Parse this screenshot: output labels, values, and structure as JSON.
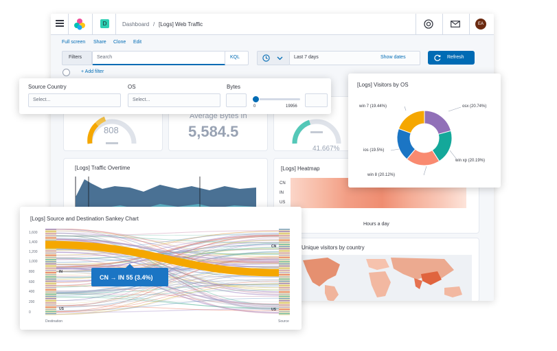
{
  "nav": {
    "space_letter": "D",
    "breadcrumb_root": "Dashboard",
    "breadcrumb_sep": "/",
    "breadcrumb_current": "[Logs] Web Traffic",
    "avatar": "EA"
  },
  "menu": [
    "Full screen",
    "Share",
    "Clone",
    "Edit"
  ],
  "query": {
    "filters_label": "Filters",
    "search_placeholder": "Search",
    "kql": "KQL",
    "date_range": "Last 7 days",
    "show_dates": "Show dates",
    "refresh": "Refresh",
    "add_filter": "+ Add filter"
  },
  "controls": {
    "source_country_label": "Source Country",
    "source_country_placeholder": "Select...",
    "os_label": "OS",
    "os_placeholder": "Select...",
    "bytes_label": "Bytes",
    "bytes_min": "0",
    "bytes_max": "19956"
  },
  "metrics": {
    "gauge1_value": "808",
    "avg_bytes_label": "Average Bytes In",
    "avg_bytes_value": "5,584.5",
    "gauge2_value": "41.667%"
  },
  "panels": {
    "traffic_title": "[Logs] Traffic Overtime",
    "heatmap_title": "[Logs] Heatmap",
    "heatmap_rows": [
      "CN",
      "IN",
      "US"
    ],
    "heatmap_xlabel": "Hours a day",
    "unique_title": "Unique visitors by country"
  },
  "chart_data": [
    {
      "type": "pie",
      "title": "[Logs] Visitors by OS",
      "labels": [
        "osx (20.74%)",
        "win xp (20.19%)",
        "win 8 (20.12%)",
        "ios (19.5%)",
        "win 7 (19.44%)"
      ],
      "values": [
        20.74,
        20.19,
        20.12,
        19.5,
        19.44
      ],
      "categories": [
        "osx",
        "win xp",
        "win 8",
        "ios",
        "win 7"
      ],
      "colors": [
        "#9170b8",
        "#14a89a",
        "#f98a70",
        "#1b75c4",
        "#f5a700"
      ]
    },
    {
      "type": "sankey",
      "title": "[Logs] Source and Destination Sankey Chart",
      "ytick_labels": [
        "1,600",
        "1,400",
        "1,200",
        "1,000",
        "800",
        "600",
        "400",
        "200",
        "0"
      ],
      "left_axis_label": "Destination",
      "right_axis_label": "Source",
      "left_node_labels": [
        "IN",
        "US"
      ],
      "right_node_labels": [
        "CN",
        "US"
      ],
      "tooltip": "CN → IN 55 (3.4%)",
      "highlight_color": "#f5a700"
    }
  ]
}
